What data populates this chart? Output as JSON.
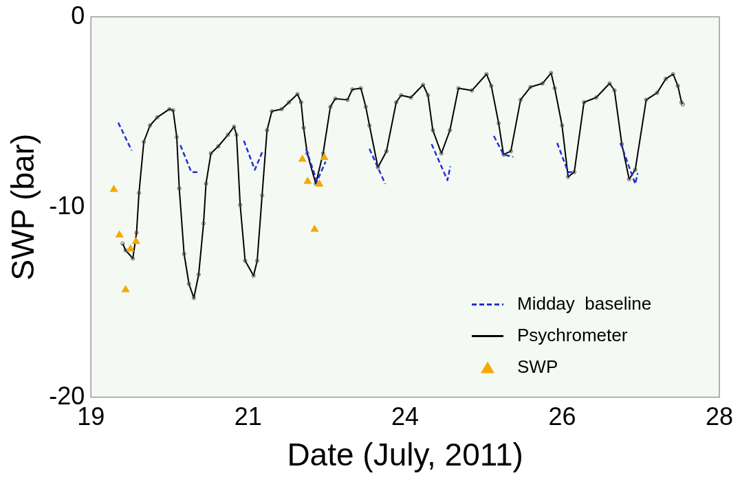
{
  "chart_data": {
    "type": "line",
    "xlabel": "Date (July, 2011)",
    "ylabel": "SWP (bar)",
    "xlim": [
      19,
      28
    ],
    "xticks": [
      19,
      {
        "value": 21.25,
        "label": "21"
      },
      {
        "value": 23.5,
        "label": "24"
      },
      {
        "value": 25.75,
        "label": "26"
      },
      28
    ],
    "ylim": [
      -20,
      0
    ],
    "yticks": [
      -20,
      -10,
      0
    ],
    "grid": false,
    "legend": "bottom right",
    "series": [
      {
        "name": "Midday  baseline",
        "type": "line",
        "color": "#1f2fd6",
        "line_style": "dashed",
        "marker": "none",
        "x": [
          19.391,
          19.584,
          19.9,
          20.281,
          20.438,
          20.543,
          20.9,
          21.19,
          21.347,
          21.452,
          21.8,
          22.08,
          22.237,
          22.36,
          22.7,
          22.989,
          23.215,
          23.5,
          23.879,
          24.106,
          24.147,
          24.5,
          24.77,
          24.909,
          25.048,
          25.4,
          25.677,
          25.834,
          25.922,
          26.3,
          26.585,
          26.795,
          26.83
        ],
        "values": [
          -5.56,
          -7.03,
          null,
          -6.75,
          -8.16,
          -8.16,
          null,
          -6.51,
          -8.04,
          -7.12,
          null,
          -6.94,
          -8.65,
          -7.61,
          null,
          -6.94,
          -8.78,
          null,
          -6.69,
          -8.59,
          -7.86,
          null,
          -6.26,
          -7.24,
          -7.36,
          null,
          -6.63,
          -8.16,
          -8.16,
          null,
          -6.63,
          -8.78,
          -8.22
        ]
      },
      {
        "name": "Psychrometer",
        "type": "line",
        "color": "#000000",
        "line_style": "solid",
        "marker": "circle",
        "x": [
          19.454,
          19.496,
          19.6,
          19.653,
          19.688,
          19.757,
          19.846,
          19.95,
          20.124,
          20.177,
          20.229,
          20.265,
          20.334,
          20.404,
          20.474,
          20.543,
          20.613,
          20.648,
          20.718,
          20.823,
          20.962,
          21.05,
          21.085,
          21.137,
          21.208,
          21.329,
          21.381,
          21.451,
          21.522,
          21.591,
          21.731,
          21.836,
          21.958,
          22.01,
          22.046,
          22.098,
          22.22,
          22.325,
          22.429,
          22.499,
          22.674,
          22.744,
          22.866,
          22.936,
          22.989,
          23.11,
          23.233,
          23.372,
          23.442,
          23.582,
          23.757,
          23.827,
          23.896,
          24.019,
          24.141,
          24.263,
          24.455,
          24.665,
          24.734,
          24.839,
          24.909,
          25.014,
          25.153,
          25.294,
          25.467,
          25.59,
          25.642,
          25.747,
          25.834,
          25.922,
          26.061,
          26.236,
          26.428,
          26.498,
          26.603,
          26.708,
          26.795,
          26.952,
          27.109,
          27.232,
          27.337,
          27.406,
          27.458,
          27.476
        ],
        "values": [
          -11.92,
          -12.27,
          -12.7,
          -11.35,
          -9.26,
          -6.57,
          -5.71,
          -5.28,
          -4.85,
          -4.91,
          -6.32,
          -9.02,
          -12.46,
          -14.04,
          -14.78,
          -13.55,
          -10.86,
          -8.77,
          -7.18,
          -6.81,
          -6.2,
          -5.77,
          -6.2,
          -9.88,
          -12.82,
          -13.61,
          -12.82,
          -9.39,
          -5.96,
          -4.96,
          -4.85,
          -4.49,
          -4.06,
          -4.49,
          -5.83,
          -7.18,
          -8.77,
          -7.18,
          -4.73,
          -4.3,
          -4.36,
          -3.81,
          -3.75,
          -4.73,
          -5.71,
          -7.91,
          -7.06,
          -4.49,
          -4.12,
          -4.24,
          -3.57,
          -4.12,
          -5.96,
          -7.18,
          -5.96,
          -3.75,
          -3.87,
          -3.01,
          -3.63,
          -5.59,
          -7.24,
          -7.06,
          -4.36,
          -3.69,
          -3.5,
          -2.95,
          -3.75,
          -5.71,
          -8.41,
          -8.16,
          -4.49,
          -4.24,
          -3.5,
          -3.87,
          -6.69,
          -8.53,
          -8.04,
          -4.36,
          -3.99,
          -3.26,
          -3.01,
          -3.63,
          -4.49,
          -4.6
        ]
      },
      {
        "name": "SWP",
        "type": "scatter",
        "color": "#f5a800",
        "marker": "triangle",
        "x": [
          19.328,
          19.409,
          19.496,
          19.566,
          19.646,
          22.028,
          22.104,
          22.203,
          22.272,
          22.342
        ],
        "values": [
          -9.08,
          -11.47,
          -14.35,
          -12.21,
          -11.81,
          -7.49,
          -8.65,
          -11.17,
          -8.8,
          -7.4
        ]
      }
    ]
  }
}
